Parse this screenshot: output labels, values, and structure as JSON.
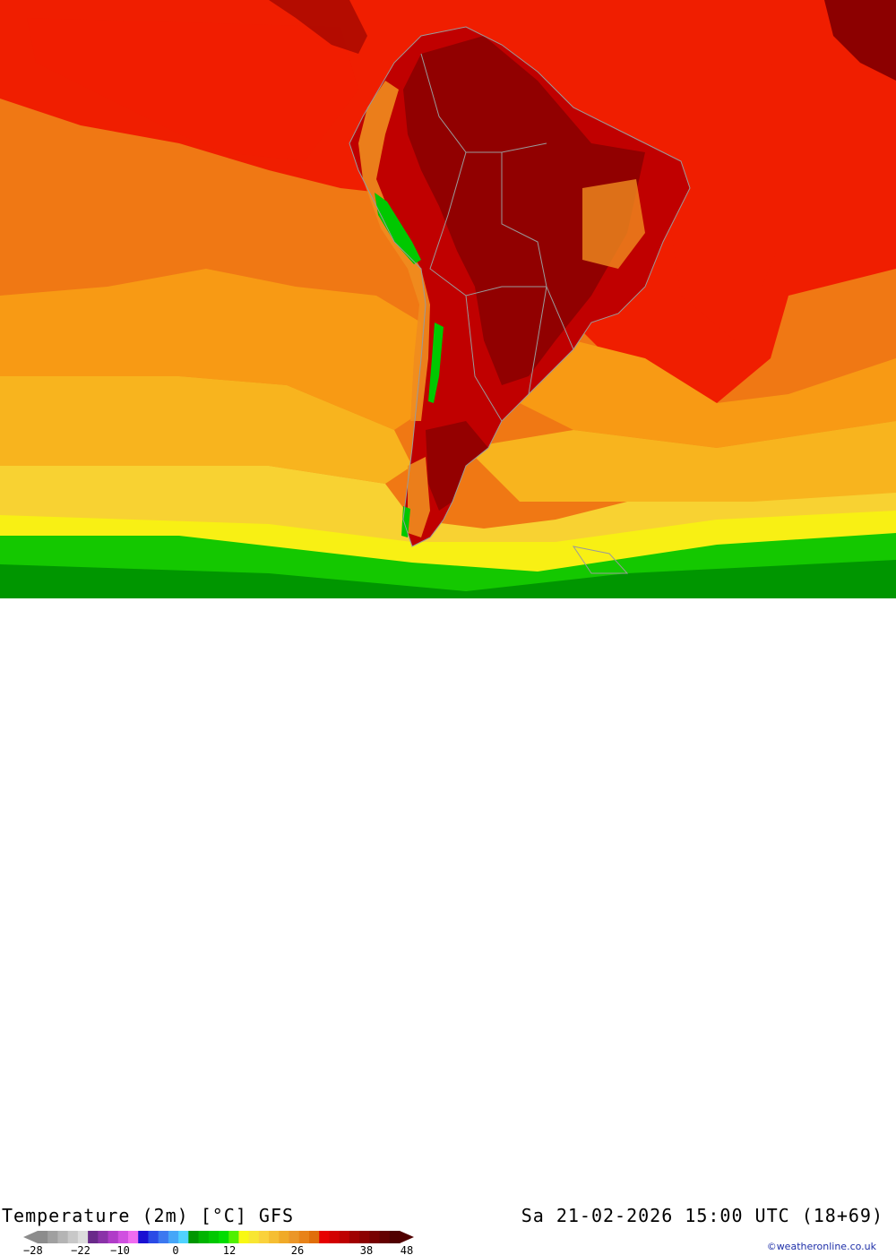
{
  "header": {
    "title": "Temperature (2m) [°C] GFS",
    "valid_time": "Sa 21-02-2026 15:00 UTC (18+69)",
    "credit": "©weatheronline.co.uk"
  },
  "legend": {
    "colors": [
      "#8c8c8c",
      "#a0a0a0",
      "#b4b4b4",
      "#c8c8c8",
      "#dcdcdc",
      "#6a2a8a",
      "#8a32a8",
      "#b03cc8",
      "#d050e0",
      "#f06cf0",
      "#1a10d2",
      "#2a4ae6",
      "#3c78f0",
      "#46a6f8",
      "#50d2ff",
      "#009600",
      "#00b400",
      "#00c800",
      "#00dc00",
      "#50f000",
      "#f8f814",
      "#f8e632",
      "#fad23c",
      "#f5be32",
      "#f0aa28",
      "#eb9628",
      "#e88218",
      "#e06e0a",
      "#e60000",
      "#d20000",
      "#be0000",
      "#a00000",
      "#8c0000",
      "#780000",
      "#640000",
      "#500000"
    ],
    "tick_labels": [
      "−28",
      "−22",
      "−10",
      "0",
      "12",
      "26",
      "38",
      "48"
    ]
  },
  "map_colors": {
    "ocean_warm": "#f07814",
    "ocean_hot": "#f01e00",
    "ocean_mild": "#f89a14",
    "ocean_cool": "#f8b41e",
    "ocean_cooler": "#f8d232",
    "ocean_yellow": "#f8f014",
    "ocean_green": "#14c800",
    "ocean_darkgreen": "#009600",
    "land_dark": "#8c0000",
    "land_red": "#c00000",
    "land_orange": "#f08c1e",
    "andes_green": "#00c800",
    "borders": "#9a9a9a"
  }
}
